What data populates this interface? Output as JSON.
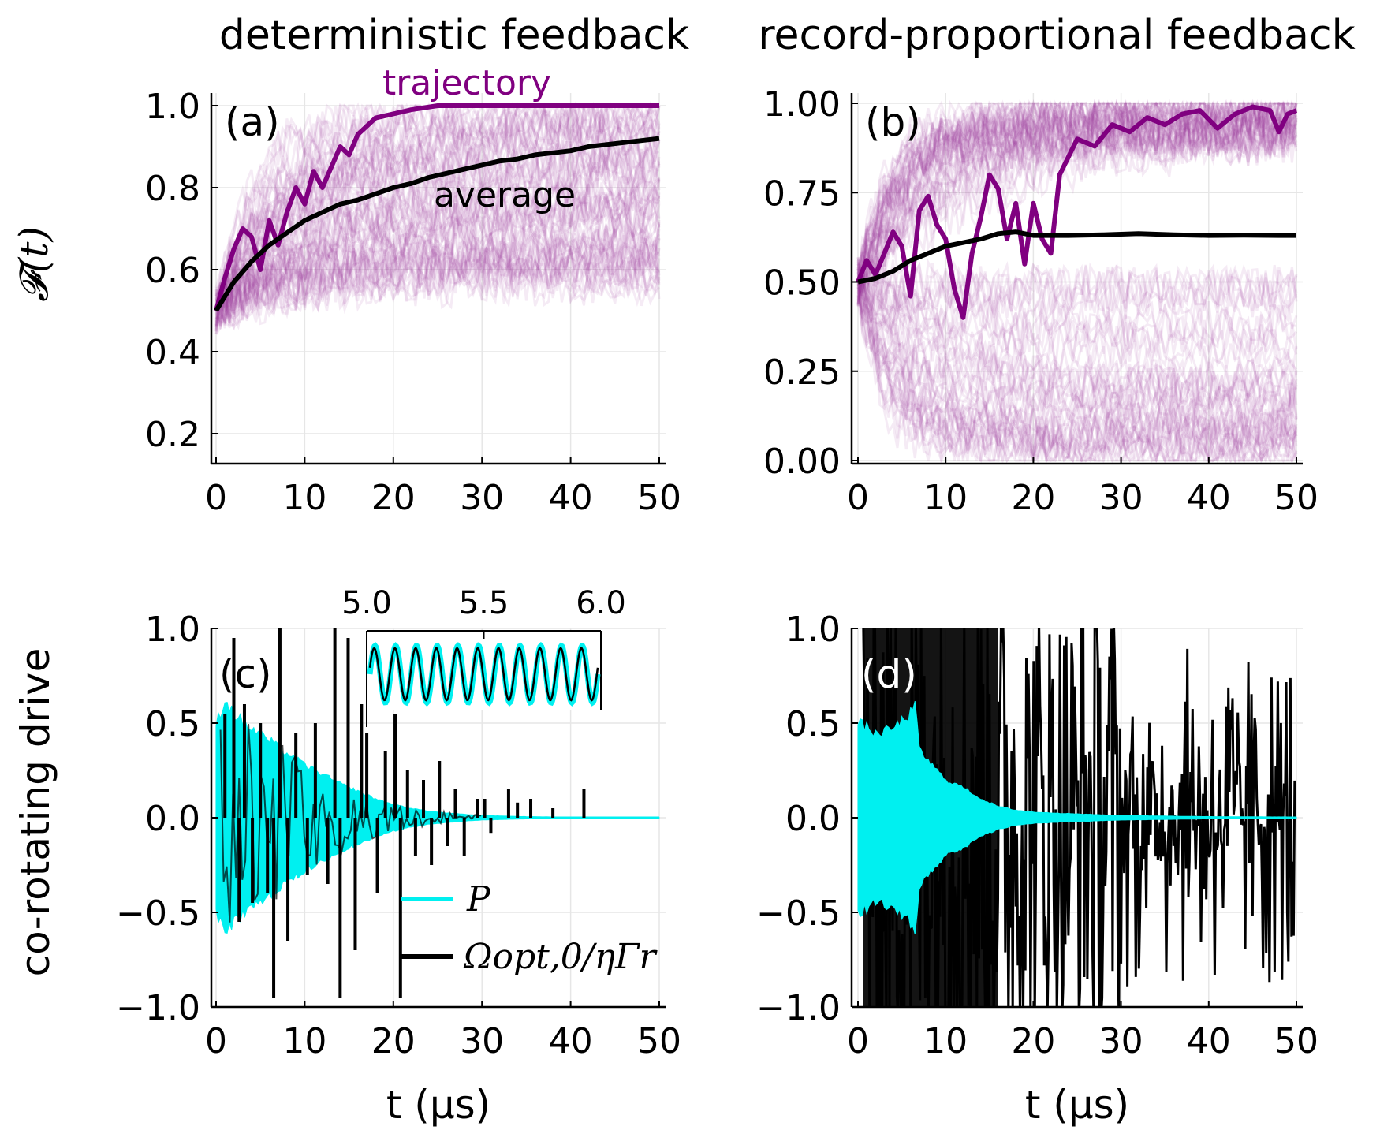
{
  "colors": {
    "trajectory": "#800080",
    "trajectory_faint": "#9b3aa0",
    "average": "#000000",
    "P": "#00f0f0",
    "omega": "#000000",
    "grid": "#e6e6e6"
  },
  "column_titles": [
    "deterministic feedback",
    "record-proportional feedback"
  ],
  "ylabels": {
    "fidelity": "𝓕(t)",
    "drive": "co-rotating drive"
  },
  "xlabel": "t (μs)",
  "chart_data": [
    {
      "id": "a",
      "type": "line",
      "panel_label": "(a)",
      "title": "deterministic feedback",
      "xlim": [
        0,
        50
      ],
      "ylim": [
        0.15,
        1.0
      ],
      "xticks": [
        0,
        10,
        20,
        30,
        40,
        50
      ],
      "xtick_labels": [
        "0",
        "10",
        "20",
        "30",
        "40",
        "50"
      ],
      "yticks": [
        0.2,
        0.4,
        0.6,
        0.8,
        1.0
      ],
      "ytick_labels": [
        "0.2",
        "0.4",
        "0.6",
        "0.8",
        "1.0"
      ],
      "grid": true,
      "annotations": [
        "trajectory",
        "average"
      ],
      "series": [
        {
          "name": "trajectory",
          "x": [
            0,
            1,
            2,
            3,
            4,
            5,
            6,
            7,
            8,
            9,
            10,
            11,
            12,
            13,
            14,
            15,
            16,
            17,
            18,
            20,
            22,
            25,
            30,
            35,
            40,
            45,
            50
          ],
          "values": [
            0.5,
            0.58,
            0.65,
            0.7,
            0.68,
            0.6,
            0.72,
            0.66,
            0.74,
            0.8,
            0.76,
            0.84,
            0.8,
            0.85,
            0.9,
            0.88,
            0.93,
            0.95,
            0.97,
            0.98,
            0.99,
            1.0,
            1.0,
            1.0,
            1.0,
            1.0,
            1.0
          ]
        },
        {
          "name": "average",
          "x": [
            0,
            2,
            4,
            6,
            8,
            10,
            12,
            14,
            16,
            18,
            20,
            22,
            24,
            26,
            28,
            30,
            32,
            34,
            36,
            38,
            40,
            42,
            44,
            46,
            48,
            50
          ],
          "values": [
            0.5,
            0.57,
            0.62,
            0.66,
            0.69,
            0.72,
            0.74,
            0.76,
            0.77,
            0.785,
            0.8,
            0.81,
            0.825,
            0.835,
            0.845,
            0.855,
            0.865,
            0.87,
            0.88,
            0.885,
            0.89,
            0.9,
            0.905,
            0.91,
            0.915,
            0.92
          ]
        }
      ]
    },
    {
      "id": "b",
      "type": "line",
      "panel_label": "(b)",
      "title": "record-proportional feedback",
      "xlim": [
        0,
        50
      ],
      "ylim": [
        -0.01,
        1.0
      ],
      "xticks": [
        0,
        10,
        20,
        30,
        40,
        50
      ],
      "xtick_labels": [
        "0",
        "10",
        "20",
        "30",
        "40",
        "50"
      ],
      "yticks": [
        0.0,
        0.25,
        0.5,
        0.75,
        1.0
      ],
      "ytick_labels": [
        "0.00",
        "0.25",
        "0.50",
        "0.75",
        "1.00"
      ],
      "grid": true,
      "series": [
        {
          "name": "trajectory",
          "x": [
            0,
            1,
            2,
            3,
            4,
            5,
            6,
            7,
            8,
            9,
            10,
            11,
            12,
            13,
            14,
            15,
            16,
            17,
            18,
            19,
            20,
            21,
            22,
            23,
            25,
            27,
            29,
            31,
            33,
            35,
            37,
            39,
            41,
            43,
            45,
            47,
            48,
            49,
            50
          ],
          "values": [
            0.5,
            0.56,
            0.52,
            0.58,
            0.64,
            0.6,
            0.46,
            0.7,
            0.74,
            0.66,
            0.62,
            0.48,
            0.4,
            0.58,
            0.68,
            0.8,
            0.76,
            0.62,
            0.72,
            0.55,
            0.72,
            0.62,
            0.58,
            0.8,
            0.9,
            0.88,
            0.94,
            0.92,
            0.96,
            0.94,
            0.97,
            0.98,
            0.93,
            0.97,
            0.99,
            0.98,
            0.92,
            0.97,
            0.98
          ]
        },
        {
          "name": "average",
          "x": [
            0,
            2,
            4,
            6,
            8,
            10,
            12,
            14,
            16,
            18,
            20,
            24,
            28,
            32,
            36,
            40,
            44,
            48,
            50
          ],
          "values": [
            0.5,
            0.51,
            0.53,
            0.56,
            0.58,
            0.6,
            0.61,
            0.62,
            0.635,
            0.64,
            0.63,
            0.63,
            0.632,
            0.635,
            0.632,
            0.63,
            0.631,
            0.63,
            0.63
          ]
        }
      ]
    },
    {
      "id": "c",
      "type": "line",
      "panel_label": "(c)",
      "xlim": [
        0,
        50
      ],
      "ylim": [
        -1.0,
        1.0
      ],
      "xticks": [
        0,
        10,
        20,
        30,
        40,
        50
      ],
      "xtick_labels": [
        "0",
        "10",
        "20",
        "30",
        "40",
        "50"
      ],
      "yticks": [
        -1.0,
        -0.5,
        0.0,
        0.5,
        1.0
      ],
      "ytick_labels": [
        "−1.0",
        "−0.5",
        "0.0",
        "0.5",
        "1.0"
      ],
      "grid": true,
      "legend": {
        "position": "bottom-center",
        "entries": [
          {
            "label": "P",
            "color": "#00f0f0"
          },
          {
            "label": "Ωopt,0/ηΓr",
            "color": "#000000"
          }
        ]
      },
      "series": [
        {
          "name": "P envelope",
          "x": [
            0,
            1,
            2,
            4,
            6,
            8,
            10,
            12,
            14,
            16,
            18,
            20,
            22,
            24,
            26,
            28,
            30,
            35,
            40,
            45,
            50
          ],
          "values": [
            0.5,
            0.62,
            0.55,
            0.47,
            0.41,
            0.34,
            0.28,
            0.23,
            0.18,
            0.14,
            0.1,
            0.07,
            0.05,
            0.035,
            0.025,
            0.018,
            0.012,
            0.006,
            0.003,
            0.002,
            0.001
          ]
        },
        {
          "name": "Omega spikes",
          "x": [
            1.0,
            2.0,
            2.6,
            3.2,
            4.1,
            5.0,
            5.8,
            6.5,
            7.2,
            8.1,
            9.0,
            10.3,
            11.2,
            12.6,
            13.4,
            14.0,
            14.9,
            15.7,
            16.4,
            17.0,
            18.2,
            19.1,
            20.2,
            20.8,
            21.6,
            22.5,
            23.4,
            24.3,
            25.2,
            26.1,
            27.0,
            28.0,
            29.5,
            30.3,
            31.0,
            33.0,
            34.0,
            35.5,
            38.0,
            41.5
          ],
          "values": [
            0.55,
            0.95,
            -0.55,
            0.6,
            -0.45,
            0.5,
            -0.4,
            -0.95,
            1.0,
            -0.65,
            0.45,
            -0.3,
            0.5,
            -0.35,
            1.0,
            -0.95,
            0.95,
            -0.7,
            0.6,
            0.45,
            -0.4,
            0.35,
            0.55,
            -0.95,
            0.25,
            -0.2,
            0.2,
            -0.25,
            0.3,
            -0.15,
            0.15,
            -0.2,
            0.1,
            0.1,
            -0.08,
            0.15,
            0.08,
            0.1,
            0.05,
            0.15
          ]
        }
      ],
      "inset": {
        "xticks": [
          5.0,
          5.5,
          6.0
        ],
        "xtick_labels": [
          "5.0",
          "5.5",
          "6.0"
        ],
        "xlim": [
          5.0,
          6.0
        ],
        "cycles": 11
      }
    },
    {
      "id": "d",
      "type": "line",
      "panel_label": "(d)",
      "xlim": [
        0,
        50
      ],
      "ylim": [
        -1.0,
        1.0
      ],
      "xticks": [
        0,
        10,
        20,
        30,
        40,
        50
      ],
      "xtick_labels": [
        "0",
        "10",
        "20",
        "30",
        "40",
        "50"
      ],
      "yticks": [
        -1.0,
        -0.5,
        0.0,
        0.5,
        1.0
      ],
      "ytick_labels": [
        "−1.0",
        "−0.5",
        "0.0",
        "0.5",
        "1.0"
      ],
      "grid": true,
      "series": [
        {
          "name": "P envelope",
          "x": [
            0,
            1,
            2,
            4,
            6,
            6.5,
            7,
            8,
            10,
            12,
            14,
            16,
            18,
            20,
            25,
            30,
            40,
            50
          ],
          "values": [
            0.5,
            0.48,
            0.44,
            0.47,
            0.55,
            0.6,
            0.36,
            0.3,
            0.2,
            0.16,
            0.1,
            0.06,
            0.04,
            0.03,
            0.02,
            0.012,
            0.006,
            0.004
          ]
        }
      ]
    }
  ]
}
